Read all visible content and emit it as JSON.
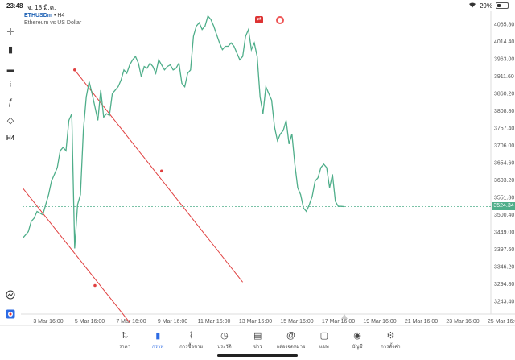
{
  "status": {
    "time": "23:48",
    "date": "จ. 18 มี.ค.",
    "battery": "29%",
    "battery_level": 0.29,
    "wifi_icon": "wifi-icon"
  },
  "symbol": {
    "name": "ETHUSDm",
    "separator": "•",
    "timeframe": "H4",
    "description": "Ethereum vs US Dollar"
  },
  "toolbar": [
    {
      "icon": "crosshair-icon",
      "glyph": "✛"
    },
    {
      "icon": "candles-icon",
      "glyph": "▮"
    },
    {
      "icon": "bar-chart-icon",
      "glyph": "▂"
    },
    {
      "icon": "indicators-icon",
      "glyph": "⫶"
    },
    {
      "icon": "function-icon",
      "glyph": "ƒ"
    },
    {
      "icon": "shapes-icon",
      "glyph": "◇"
    },
    {
      "icon": "timeframe-icon",
      "glyph": "H4"
    }
  ],
  "current_price": "3524.34",
  "chart_data": {
    "type": "line",
    "y_ticks": [
      "4065.80",
      "4014.40",
      "3963.00",
      "3911.60",
      "3860.20",
      "3808.80",
      "3757.40",
      "3706.00",
      "3654.60",
      "3603.20",
      "3551.80",
      "3500.40",
      "3449.00",
      "3397.60",
      "3346.20",
      "3294.80",
      "3243.40"
    ],
    "x_ticks": [
      "3 Mar 16:00",
      "5 Mar 16:00",
      "7 Mar 16:00",
      "9 Mar 16:00",
      "11 Mar 16:00",
      "13 Mar 16:00",
      "15 Mar 16:00",
      "17 Mar 16:00",
      "19 Mar 16:00",
      "21 Mar 16:00",
      "23 Mar 16:00",
      "25 Mar 16:00"
    ],
    "ylim": [
      3243.4,
      4065.8
    ],
    "series": [
      {
        "values": [
          3430,
          3440,
          3450,
          3480,
          3490,
          3510,
          3505,
          3500,
          3530,
          3560,
          3600,
          3620,
          3640,
          3690,
          3700,
          3690,
          3780,
          3800,
          3400,
          3530,
          3560,
          3750,
          3850,
          3895,
          3860,
          3820,
          3780,
          3870,
          3790,
          3800,
          3795,
          3860,
          3870,
          3880,
          3900,
          3930,
          3920,
          3945,
          3960,
          3970,
          3950,
          3910,
          3940,
          3935,
          3950,
          3940,
          3920,
          3960,
          3945,
          3930,
          3940,
          3945,
          3930,
          3935,
          3950,
          3890,
          3880,
          3920,
          3930,
          4030,
          4060,
          4070,
          4050,
          4060,
          4090,
          4080,
          4060,
          4035,
          4010,
          3990,
          4000,
          4000,
          4010,
          4000,
          3980,
          3960,
          3970,
          4030,
          4050,
          3990,
          4010,
          3970,
          3850,
          3800,
          3880,
          3860,
          3840,
          3760,
          3720,
          3740,
          3750,
          3780,
          3710,
          3740,
          3650,
          3580,
          3560,
          3520,
          3510,
          3530,
          3555,
          3600,
          3610,
          3640,
          3650,
          3640,
          3580,
          3620,
          3540,
          3525,
          3525,
          3524.34
        ]
      }
    ],
    "trend_lines": [
      {
        "color": "#e04040",
        "points": [
          {
            "x": 0,
            "y": 3580
          },
          {
            "x": 25,
            "y": 3290
          },
          {
            "x": 37,
            "y": 3180
          }
        ]
      },
      {
        "color": "#e04040",
        "points": [
          {
            "x": 18,
            "y": 3930
          },
          {
            "x": 48,
            "y": 3630
          },
          {
            "x": 76,
            "y": 3300
          }
        ]
      }
    ],
    "price_line": 3524.34,
    "grid": false
  },
  "tabs": [
    {
      "icon": "trade-icon",
      "glyph": "⇅",
      "label": "ราคา"
    },
    {
      "icon": "chart-icon",
      "glyph": "▮",
      "label": "กราฟ",
      "active": true
    },
    {
      "icon": "trading-icon",
      "glyph": "⌇",
      "label": "การซื้อขาย"
    },
    {
      "icon": "history-icon",
      "glyph": "◷",
      "label": "ประวัติ"
    },
    {
      "icon": "news-icon",
      "glyph": "▤",
      "label": "ข่าว"
    },
    {
      "icon": "mailbox-icon",
      "glyph": "@",
      "label": "กล่องจดหมาย"
    },
    {
      "icon": "chat-icon",
      "glyph": "▢",
      "label": "แชท"
    },
    {
      "icon": "account-icon",
      "glyph": "◉",
      "label": "บัญชี"
    },
    {
      "icon": "settings-icon",
      "glyph": "⚙",
      "label": "การตั้งค่า"
    }
  ]
}
